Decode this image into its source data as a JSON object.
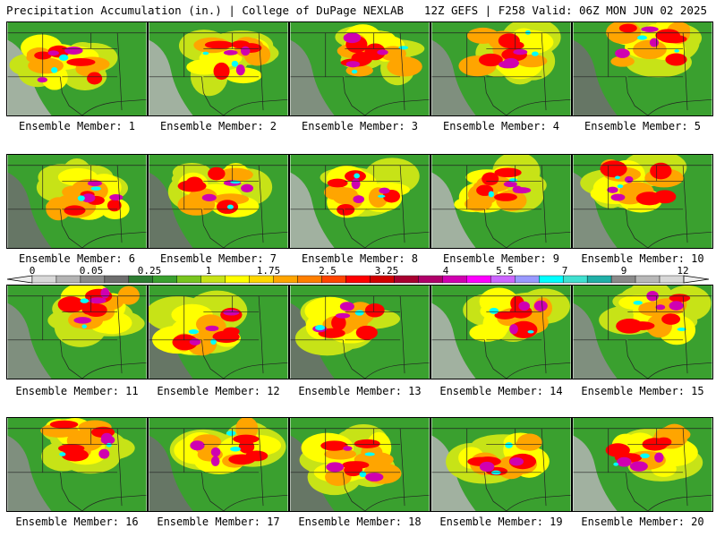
{
  "header": {
    "left": "Precipitation Accumulation (in.) | College of DuPage NEXLAB",
    "right": "12Z GEFS | F258 Valid: 06Z MON JUN 02 2025"
  },
  "colorbar": {
    "labels": [
      "0",
      "0.05",
      "0.25",
      "1",
      "1.75",
      "2.5",
      "3.25",
      "4",
      "5.5",
      "7",
      "9",
      "12"
    ],
    "colors": [
      "#d8d8d8",
      "#b4b4b4",
      "#8c8c8c",
      "#6e6e6e",
      "#2e7d32",
      "#3aa02f",
      "#79c51f",
      "#c7e317",
      "#ffff00",
      "#ffd700",
      "#ffa500",
      "#ff7f00",
      "#ff4500",
      "#ff0000",
      "#d00000",
      "#a80030",
      "#b0006a",
      "#d000b0",
      "#ff00ff",
      "#cc66ff",
      "#9999ff",
      "#00ffff",
      "#40e0d0",
      "#20b0a8",
      "#8a8a8a",
      "#b8b8b8",
      "#d8d8d8"
    ]
  },
  "panels": [
    {
      "label": "Ensemble Member: 1"
    },
    {
      "label": "Ensemble Member: 2"
    },
    {
      "label": "Ensemble Member: 3"
    },
    {
      "label": "Ensemble Member: 4"
    },
    {
      "label": "Ensemble Member: 5"
    },
    {
      "label": "Ensemble Member: 6"
    },
    {
      "label": "Ensemble Member: 7"
    },
    {
      "label": "Ensemble Member: 8"
    },
    {
      "label": "Ensemble Member: 9"
    },
    {
      "label": "Ensemble Member: 10"
    },
    {
      "label": "Ensemble Member: 11"
    },
    {
      "label": "Ensemble Member: 12"
    },
    {
      "label": "Ensemble Member: 13"
    },
    {
      "label": "Ensemble Member: 14"
    },
    {
      "label": "Ensemble Member: 15"
    },
    {
      "label": "Ensemble Member: 16"
    },
    {
      "label": "Ensemble Member: 17"
    },
    {
      "label": "Ensemble Member: 18"
    },
    {
      "label": "Ensemble Member: 19"
    },
    {
      "label": "Ensemble Member: 20"
    }
  ]
}
